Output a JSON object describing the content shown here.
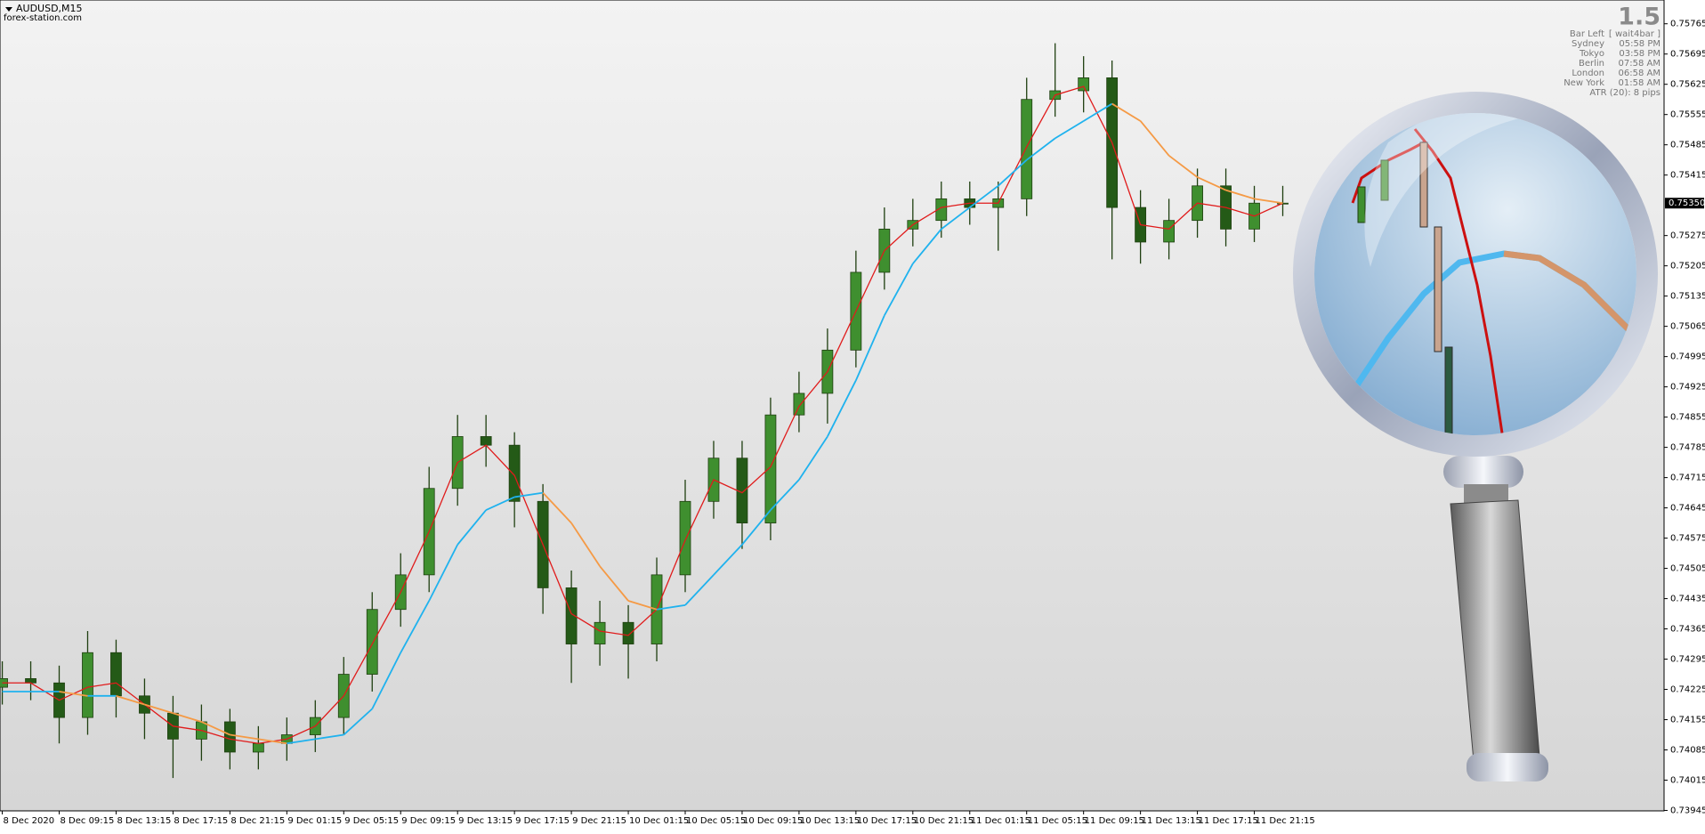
{
  "header": {
    "symbol": "AUDUSD,M15",
    "source": "forex-station.com"
  },
  "info_panel": {
    "value": "1.5",
    "rows": [
      {
        "label": "Bar Left",
        "value": "[ wait4bar ]"
      },
      {
        "label": "Sydney",
        "value": "05:58 PM"
      },
      {
        "label": "Tokyo",
        "value": "03:58 PM"
      },
      {
        "label": "Berlin",
        "value": "07:58 AM"
      },
      {
        "label": "London",
        "value": "06:58 AM"
      },
      {
        "label": "New York",
        "value": "01:58 AM"
      }
    ],
    "atr": "ATR (20): 8 pips"
  },
  "chart_data": {
    "type": "candlestick",
    "open": [
      0.7423,
      0.7425,
      0.7424,
      0.7416,
      0.7431,
      0.7421,
      0.7417,
      0.7411,
      0.7415,
      0.7408,
      0.741,
      0.7412,
      0.7416,
      0.7426,
      0.7441,
      0.7449,
      0.7469,
      0.7481,
      0.7479,
      0.7466,
      0.7446,
      0.7433,
      0.7438,
      0.7433,
      0.7449,
      0.7466,
      0.7476,
      0.7461,
      0.7486,
      0.7491,
      0.7501,
      0.7519,
      0.7529,
      0.7531,
      0.7536,
      0.7534,
      0.7536,
      0.7559,
      0.7561,
      0.7564,
      0.7534,
      0.7526,
      0.7531,
      0.7539,
      0.7529,
      0.7535
    ],
    "high": [
      0.7429,
      0.7429,
      0.7428,
      0.7436,
      0.7434,
      0.7425,
      0.7421,
      0.7419,
      0.7418,
      0.7414,
      0.7416,
      0.742,
      0.743,
      0.7445,
      0.7454,
      0.7474,
      0.7486,
      0.7486,
      0.7482,
      0.747,
      0.745,
      0.7443,
      0.7442,
      0.7453,
      0.7471,
      0.748,
      0.748,
      0.749,
      0.7496,
      0.7506,
      0.7524,
      0.7534,
      0.7536,
      0.754,
      0.754,
      0.754,
      0.7564,
      0.7572,
      0.7569,
      0.7568,
      0.7538,
      0.7536,
      0.7543,
      0.7543,
      0.7539,
      0.7539
    ],
    "low": [
      0.7419,
      0.742,
      0.741,
      0.7412,
      0.7416,
      0.7411,
      0.7402,
      0.7406,
      0.7404,
      0.7404,
      0.7406,
      0.7408,
      0.7412,
      0.7422,
      0.7437,
      0.7445,
      0.7465,
      0.7474,
      0.746,
      0.744,
      0.7424,
      0.7428,
      0.7425,
      0.7429,
      0.7445,
      0.7462,
      0.7455,
      0.7457,
      0.7482,
      0.7484,
      0.7497,
      0.7515,
      0.7525,
      0.7527,
      0.753,
      0.7524,
      0.7532,
      0.7555,
      0.7556,
      0.7522,
      0.7521,
      0.7522,
      0.7527,
      0.7525,
      0.7526,
      0.7532
    ],
    "close": [
      0.7425,
      0.7424,
      0.7416,
      0.7431,
      0.7421,
      0.7417,
      0.7411,
      0.7415,
      0.7408,
      0.741,
      0.7412,
      0.7416,
      0.7426,
      0.7441,
      0.7449,
      0.7469,
      0.7481,
      0.7479,
      0.7466,
      0.7446,
      0.7433,
      0.7438,
      0.7433,
      0.7449,
      0.7466,
      0.7476,
      0.7461,
      0.7486,
      0.7491,
      0.7501,
      0.7519,
      0.7529,
      0.7531,
      0.7536,
      0.7534,
      0.7536,
      0.7559,
      0.7561,
      0.7564,
      0.7534,
      0.7526,
      0.7531,
      0.7539,
      0.7529,
      0.7535,
      0.7535
    ],
    "up_color": "#3f8f2f",
    "down_color": "#245a17",
    "moving_averages": [
      {
        "color": "#e01b1b",
        "values": [
          0.7424,
          0.7424,
          0.742,
          0.7423,
          0.7424,
          0.7419,
          0.7414,
          0.7413,
          0.7411,
          0.741,
          0.7411,
          0.7414,
          0.7421,
          0.7433,
          0.7445,
          0.7459,
          0.7475,
          0.7479,
          0.7472,
          0.7456,
          0.744,
          0.7436,
          0.7435,
          0.7441,
          0.7457,
          0.7471,
          0.7468,
          0.7474,
          0.7488,
          0.7496,
          0.751,
          0.7524,
          0.753,
          0.7534,
          0.7535,
          0.7535,
          0.7548,
          0.756,
          0.7562,
          0.7549,
          0.753,
          0.7529,
          0.7535,
          0.7534,
          0.7532,
          0.7535
        ]
      },
      {
        "up_color": "#1fb2ee",
        "down_color": "#f59a45",
        "values": [
          0.7422,
          0.7422,
          0.7422,
          0.7421,
          0.7421,
          0.7419,
          0.7417,
          0.7415,
          0.7412,
          0.7411,
          0.741,
          0.7411,
          0.7412,
          0.7418,
          0.7431,
          0.7443,
          0.7456,
          0.7464,
          0.7467,
          0.7468,
          0.7461,
          0.7451,
          0.7443,
          0.7441,
          0.7442,
          0.7449,
          0.7456,
          0.7464,
          0.7471,
          0.7481,
          0.7494,
          0.7509,
          0.7521,
          0.7529,
          0.7534,
          0.7539,
          0.7545,
          0.755,
          0.7554,
          0.7558,
          0.7554,
          0.7546,
          0.7541,
          0.7538,
          0.7536,
          0.7535
        ]
      }
    ],
    "xlim": [
      -0.08,
      58.4
    ],
    "xticks": [
      {
        "value": 0,
        "label": "8 Dec 2020"
      },
      {
        "value": 2,
        "label": "8 Dec 09:15"
      },
      {
        "value": 4,
        "label": "8 Dec 13:15"
      },
      {
        "value": 6,
        "label": "8 Dec 17:15"
      },
      {
        "value": 8,
        "label": "8 Dec 21:15"
      },
      {
        "value": 10,
        "label": "9 Dec 01:15"
      },
      {
        "value": 12,
        "label": "9 Dec 05:15"
      },
      {
        "value": 14,
        "label": "9 Dec 09:15"
      },
      {
        "value": 16,
        "label": "9 Dec 13:15"
      },
      {
        "value": 18,
        "label": "9 Dec 17:15"
      },
      {
        "value": 20,
        "label": "9 Dec 21:15"
      },
      {
        "value": 22,
        "label": "10 Dec 01:15"
      },
      {
        "value": 24,
        "label": "10 Dec 05:15"
      },
      {
        "value": 26,
        "label": "10 Dec 09:15"
      },
      {
        "value": 28,
        "label": "10 Dec 13:15"
      },
      {
        "value": 30,
        "label": "10 Dec 17:15"
      },
      {
        "value": 32,
        "label": "10 Dec 21:15"
      },
      {
        "value": 34,
        "label": "11 Dec 01:15"
      },
      {
        "value": 36,
        "label": "11 Dec 05:15"
      },
      {
        "value": 38,
        "label": "11 Dec 09:15"
      },
      {
        "value": 40,
        "label": "11 Dec 13:15"
      },
      {
        "value": 42,
        "label": "11 Dec 17:15"
      },
      {
        "value": 44,
        "label": "11 Dec 21:15"
      }
    ],
    "ylim": [
      0.73944,
      0.7582
    ],
    "yticks": [
      0.75765,
      0.75695,
      0.75625,
      0.75555,
      0.75485,
      0.75415,
      0.75275,
      0.75205,
      0.75135,
      0.75065,
      0.74995,
      0.74925,
      0.74855,
      0.74785,
      0.74715,
      0.74645,
      0.74575,
      0.74505,
      0.74435,
      0.74365,
      0.74295,
      0.74225,
      0.74155,
      0.74085,
      0.74015,
      0.73945
    ],
    "current_price": {
      "value": 0.7535,
      "label": "0.75350"
    }
  }
}
